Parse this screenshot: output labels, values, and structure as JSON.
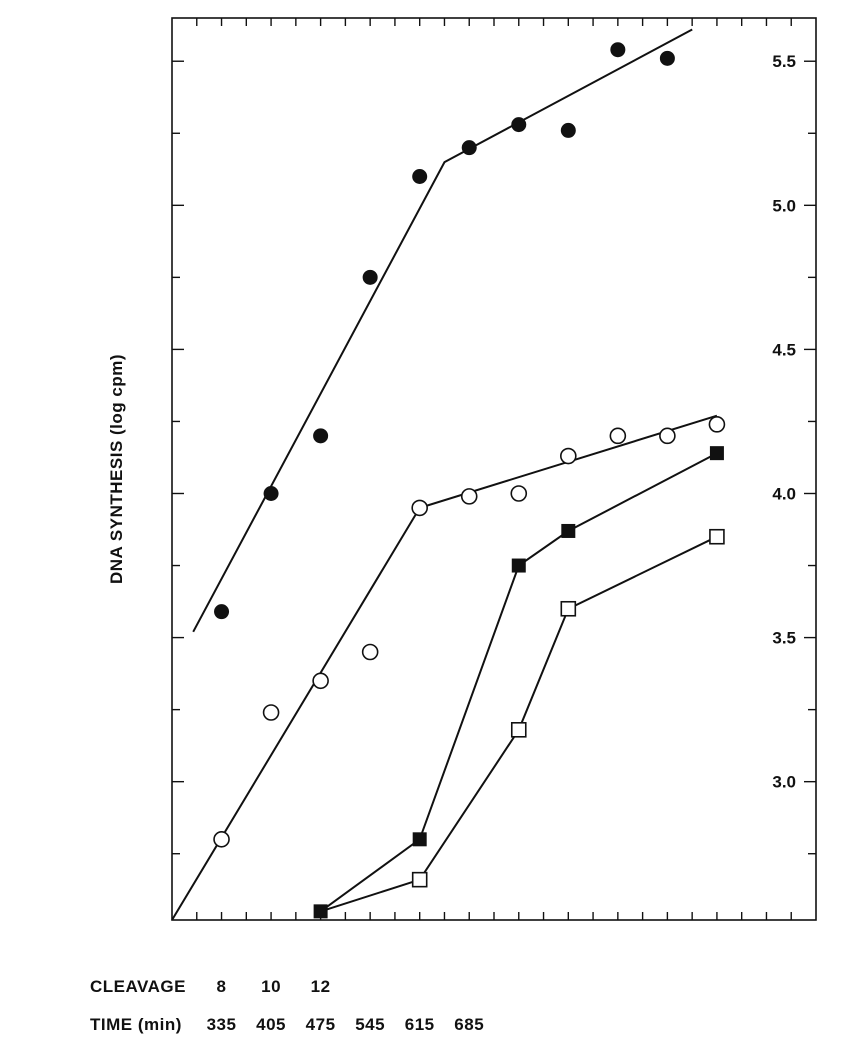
{
  "chart_data": {
    "type": "scatter",
    "title": "",
    "xlabel": "",
    "ylabel": "DNA SYNTHESIS  (log cpm)",
    "xlim": [
      265,
      1175
    ],
    "ylim": [
      2.52,
      5.65
    ],
    "y_ticks": [
      3.0,
      3.5,
      4.0,
      4.5,
      5.0,
      5.5
    ],
    "y_tick_labels": [
      "3.0",
      "3.5",
      "4.0",
      "4.5",
      "5.0",
      "5.5"
    ],
    "grid": false,
    "legend": "none",
    "cleavage_row": {
      "label": "CLEAVAGE",
      "entries": [
        {
          "x": 335,
          "text": "8"
        },
        {
          "x": 405,
          "text": "10"
        },
        {
          "x": 475,
          "text": "12"
        }
      ]
    },
    "time_row": {
      "label": "TIME (min)",
      "entries": [
        {
          "x": 335,
          "text": "335"
        },
        {
          "x": 405,
          "text": "405"
        },
        {
          "x": 475,
          "text": "475"
        },
        {
          "x": 545,
          "text": "545"
        },
        {
          "x": 615,
          "text": "615"
        },
        {
          "x": 685,
          "text": "685"
        }
      ]
    },
    "series": [
      {
        "marker": "filled-circle",
        "points": [
          {
            "x": 335,
            "y": 3.59
          },
          {
            "x": 405,
            "y": 4.0
          },
          {
            "x": 475,
            "y": 4.2
          },
          {
            "x": 545,
            "y": 4.75
          },
          {
            "x": 615,
            "y": 5.1
          },
          {
            "x": 685,
            "y": 5.2
          },
          {
            "x": 755,
            "y": 5.28
          },
          {
            "x": 825,
            "y": 5.26
          },
          {
            "x": 895,
            "y": 5.54
          },
          {
            "x": 965,
            "y": 5.51
          }
        ],
        "fit_line": [
          {
            "x": 295,
            "y": 3.52
          },
          {
            "x": 650,
            "y": 5.15
          },
          {
            "x": 1000,
            "y": 5.61
          }
        ]
      },
      {
        "marker": "open-circle",
        "points": [
          {
            "x": 335,
            "y": 2.8
          },
          {
            "x": 405,
            "y": 3.24
          },
          {
            "x": 475,
            "y": 3.35
          },
          {
            "x": 545,
            "y": 3.45
          },
          {
            "x": 615,
            "y": 3.95
          },
          {
            "x": 685,
            "y": 3.99
          },
          {
            "x": 755,
            "y": 4.0
          },
          {
            "x": 825,
            "y": 4.13
          },
          {
            "x": 895,
            "y": 4.2
          },
          {
            "x": 965,
            "y": 4.2
          },
          {
            "x": 1035,
            "y": 4.24
          }
        ],
        "fit_line": [
          {
            "x": 265,
            "y": 2.52
          },
          {
            "x": 615,
            "y": 3.95
          },
          {
            "x": 1035,
            "y": 4.27
          }
        ]
      },
      {
        "marker": "filled-square",
        "points": [
          {
            "x": 475,
            "y": 2.55
          },
          {
            "x": 615,
            "y": 2.8
          },
          {
            "x": 755,
            "y": 3.75
          },
          {
            "x": 825,
            "y": 3.87
          },
          {
            "x": 1035,
            "y": 4.14
          }
        ],
        "fit_line": [
          {
            "x": 475,
            "y": 2.55
          },
          {
            "x": 615,
            "y": 2.8
          },
          {
            "x": 755,
            "y": 3.75
          },
          {
            "x": 825,
            "y": 3.87
          },
          {
            "x": 1035,
            "y": 4.14
          }
        ]
      },
      {
        "marker": "open-square",
        "points": [
          {
            "x": 615,
            "y": 2.66
          },
          {
            "x": 755,
            "y": 3.18
          },
          {
            "x": 825,
            "y": 3.6
          },
          {
            "x": 1035,
            "y": 3.85
          }
        ],
        "fit_line": [
          {
            "x": 475,
            "y": 2.55
          },
          {
            "x": 615,
            "y": 2.66
          },
          {
            "x": 755,
            "y": 3.18
          },
          {
            "x": 825,
            "y": 3.6
          },
          {
            "x": 1035,
            "y": 3.85
          }
        ]
      }
    ]
  }
}
